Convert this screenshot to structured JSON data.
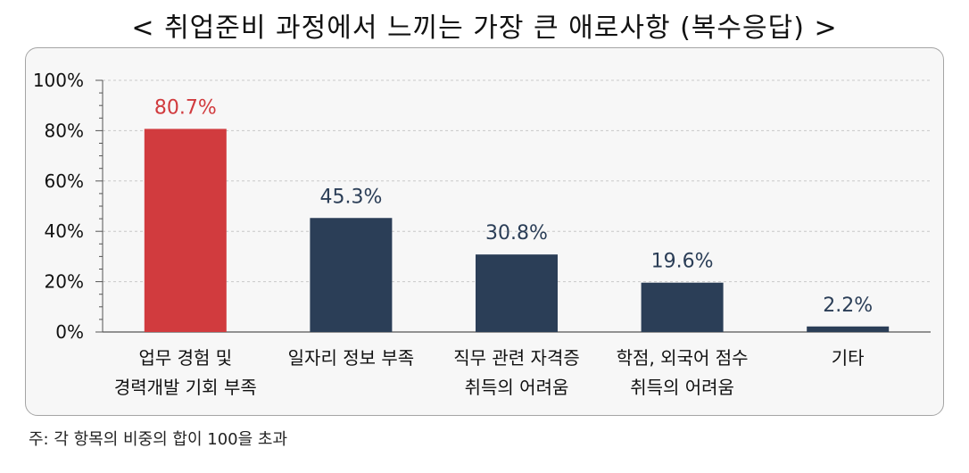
{
  "title": "< 취업준비 과정에서 느끼는 가장 큰 애로사항 (복수응답) >",
  "footnote": "주: 각 항목의 비중의 합이 100을 초과",
  "colors": {
    "highlight": "#d13b3e",
    "bar": "#2b3e57",
    "grid": "#c8c8c8",
    "axis": "#555555"
  },
  "chart_data": {
    "type": "bar",
    "title": "< 취업준비 과정에서 느끼는 가장 큰 애로사항 (복수응답) >",
    "categories": [
      [
        "업무 경험 및",
        "경력개발 기회 부족"
      ],
      [
        "일자리 정보 부족"
      ],
      [
        "직무 관련 자격증",
        "취득의 어려움"
      ],
      [
        "학점, 외국어 점수",
        "취득의 어려움"
      ],
      [
        "기타"
      ]
    ],
    "values": [
      80.7,
      45.3,
      30.8,
      19.6,
      2.2
    ],
    "value_labels": [
      "80.7%",
      "45.3%",
      "30.8%",
      "19.6%",
      "2.2%"
    ],
    "highlight_index": 0,
    "ylim": [
      0,
      100
    ],
    "yticks": [
      "0%",
      "20%",
      "40%",
      "60%",
      "80%",
      "100%"
    ],
    "grid": true,
    "legend": "none"
  }
}
